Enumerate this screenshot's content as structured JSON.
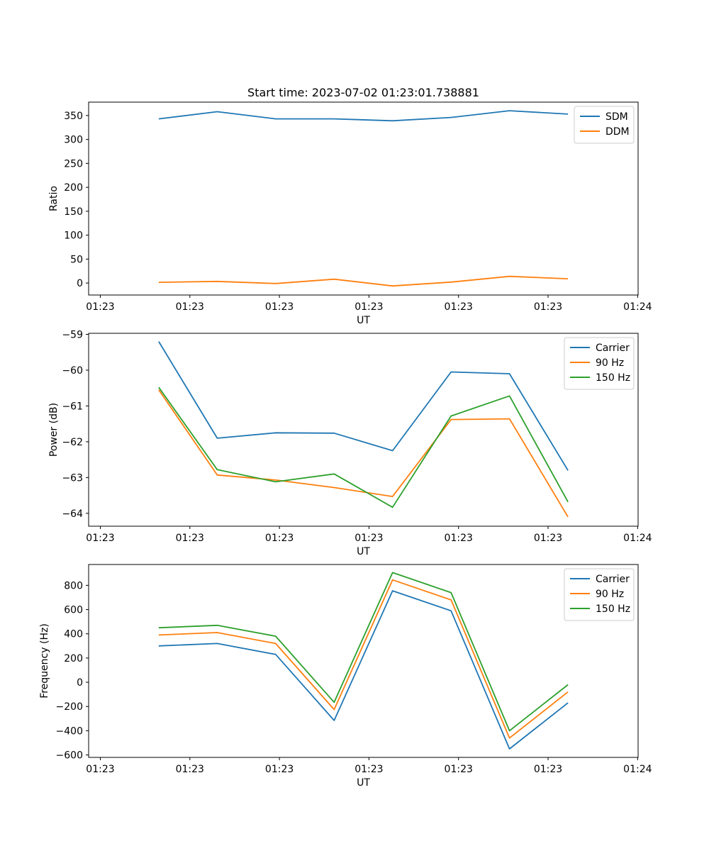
{
  "chart_data": [
    {
      "type": "line",
      "title": "Start time: 2023-07-02 01:23:01.738881",
      "xlabel": "UT",
      "ylabel": "Ratio",
      "x": [
        0.5,
        1.0,
        1.5,
        2.0,
        2.5,
        3.0,
        3.5,
        4.0
      ],
      "xlim": [
        -0.1,
        4.6
      ],
      "xticks": [
        0.0,
        0.766,
        1.532,
        2.298,
        3.064,
        3.83,
        4.596
      ],
      "xtick_labels": [
        "01:23",
        "01:23",
        "01:23",
        "01:23",
        "01:23",
        "01:23",
        "01:24"
      ],
      "ylim": [
        -25,
        378
      ],
      "yticks": [
        0,
        50,
        100,
        150,
        200,
        250,
        300,
        350
      ],
      "ytick_labels": [
        "0",
        "50",
        "100",
        "150",
        "200",
        "250",
        "300",
        "350"
      ],
      "legend_position": "top-right",
      "series": [
        {
          "name": "SDM",
          "color": "#1f77b4",
          "values": [
            343,
            358,
            343,
            343,
            339,
            346,
            360,
            353
          ]
        },
        {
          "name": "DDM",
          "color": "#ff7f0e",
          "values": [
            1.5,
            3.5,
            -1,
            8,
            -6,
            2,
            14,
            9
          ]
        }
      ]
    },
    {
      "type": "line",
      "title": "",
      "xlabel": "UT",
      "ylabel": "Power (dB)",
      "x": [
        0.5,
        1.0,
        1.5,
        2.0,
        2.5,
        3.0,
        3.5,
        4.0
      ],
      "xlim": [
        -0.1,
        4.6
      ],
      "xticks": [
        0.0,
        0.766,
        1.532,
        2.298,
        3.064,
        3.83,
        4.596
      ],
      "xtick_labels": [
        "01:23",
        "01:23",
        "01:23",
        "01:23",
        "01:23",
        "01:23",
        "01:24"
      ],
      "ylim": [
        -64.36,
        -58.97
      ],
      "yticks": [
        -64,
        -63,
        -62,
        -61,
        -60,
        -59
      ],
      "ytick_labels": [
        "−64",
        "−63",
        "−62",
        "−61",
        "−60",
        "−59"
      ],
      "legend_position": "top-right",
      "series": [
        {
          "name": "Carrier",
          "color": "#1f77b4",
          "values": [
            -59.2,
            -61.9,
            -61.75,
            -61.76,
            -62.25,
            -60.05,
            -60.1,
            -62.8
          ]
        },
        {
          "name": "90 Hz",
          "color": "#ff7f0e",
          "values": [
            -60.55,
            -62.93,
            -63.07,
            -63.28,
            -63.53,
            -61.38,
            -61.36,
            -64.1
          ]
        },
        {
          "name": "150 Hz",
          "color": "#2ca02c",
          "values": [
            -60.48,
            -62.78,
            -63.12,
            -62.9,
            -63.83,
            -61.28,
            -60.72,
            -63.68
          ]
        }
      ]
    },
    {
      "type": "line",
      "title": "",
      "xlabel": "UT",
      "ylabel": "Frequency (Hz)",
      "x": [
        0.5,
        1.0,
        1.5,
        2.0,
        2.5,
        3.0,
        3.5,
        4.0
      ],
      "xlim": [
        -0.1,
        4.6
      ],
      "xticks": [
        0.0,
        0.766,
        1.532,
        2.298,
        3.064,
        3.83,
        4.596
      ],
      "xtick_labels": [
        "01:23",
        "01:23",
        "01:23",
        "01:23",
        "01:23",
        "01:23",
        "01:24"
      ],
      "ylim": [
        -620,
        972
      ],
      "yticks": [
        -600,
        -400,
        -200,
        0,
        200,
        400,
        600,
        800
      ],
      "ytick_labels": [
        "−600",
        "−400",
        "−200",
        "0",
        "200",
        "400",
        "600",
        "800"
      ],
      "legend_position": "top-right",
      "series": [
        {
          "name": "Carrier",
          "color": "#1f77b4",
          "values": [
            300,
            320,
            230,
            -315,
            755,
            590,
            -550,
            -170
          ]
        },
        {
          "name": "90 Hz",
          "color": "#ff7f0e",
          "values": [
            390,
            410,
            320,
            -225,
            845,
            680,
            -460,
            -80
          ]
        },
        {
          "name": "150 Hz",
          "color": "#2ca02c",
          "values": [
            450,
            470,
            380,
            -165,
            905,
            740,
            -400,
            -20
          ]
        }
      ]
    }
  ]
}
